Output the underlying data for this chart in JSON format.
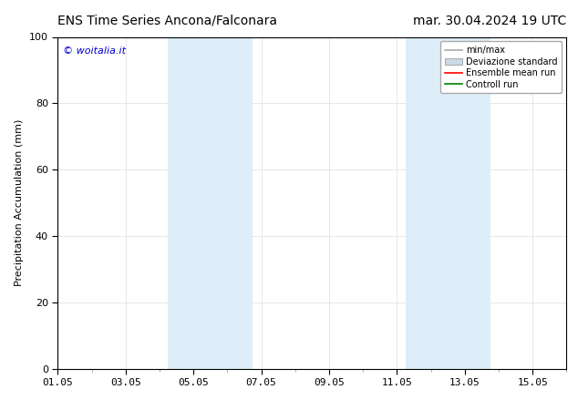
{
  "title_left": "ENS Time Series Ancona/Falconara",
  "title_right": "mar. 30.04.2024 19 UTC",
  "ylabel": "Precipitation Accumulation (mm)",
  "watermark": "© woitalia.it",
  "watermark_color": "#0000cc",
  "ylim": [
    0,
    100
  ],
  "yticks": [
    0,
    20,
    40,
    60,
    80,
    100
  ],
  "xtick_labels": [
    "01.05",
    "03.05",
    "05.05",
    "07.05",
    "09.05",
    "11.05",
    "13.05",
    "15.05"
  ],
  "xtick_positions_days": [
    0,
    2,
    4,
    6,
    8,
    10,
    12,
    14
  ],
  "total_days": 15,
  "shaded_regions": [
    {
      "x_start_day": 3.25,
      "x_end_day": 5.75,
      "color": "#ddeef8"
    },
    {
      "x_start_day": 10.25,
      "x_end_day": 12.75,
      "color": "#ddeef8"
    }
  ],
  "legend_labels": [
    "min/max",
    "Deviazione standard",
    "Ensemble mean run",
    "Controll run"
  ],
  "bg_color": "#ffffff",
  "plot_bg_color": "#ffffff",
  "title_fontsize": 10,
  "ylabel_fontsize": 8,
  "tick_fontsize": 8,
  "watermark_fontsize": 8,
  "legend_fontsize": 7,
  "grid_color": "#dddddd",
  "border_color": "#000000",
  "minmax_color": "#aaaaaa",
  "devstd_facecolor": "#c8dce8",
  "devstd_edgecolor": "#aaaaaa",
  "ens_color": "red",
  "ctrl_color": "green"
}
